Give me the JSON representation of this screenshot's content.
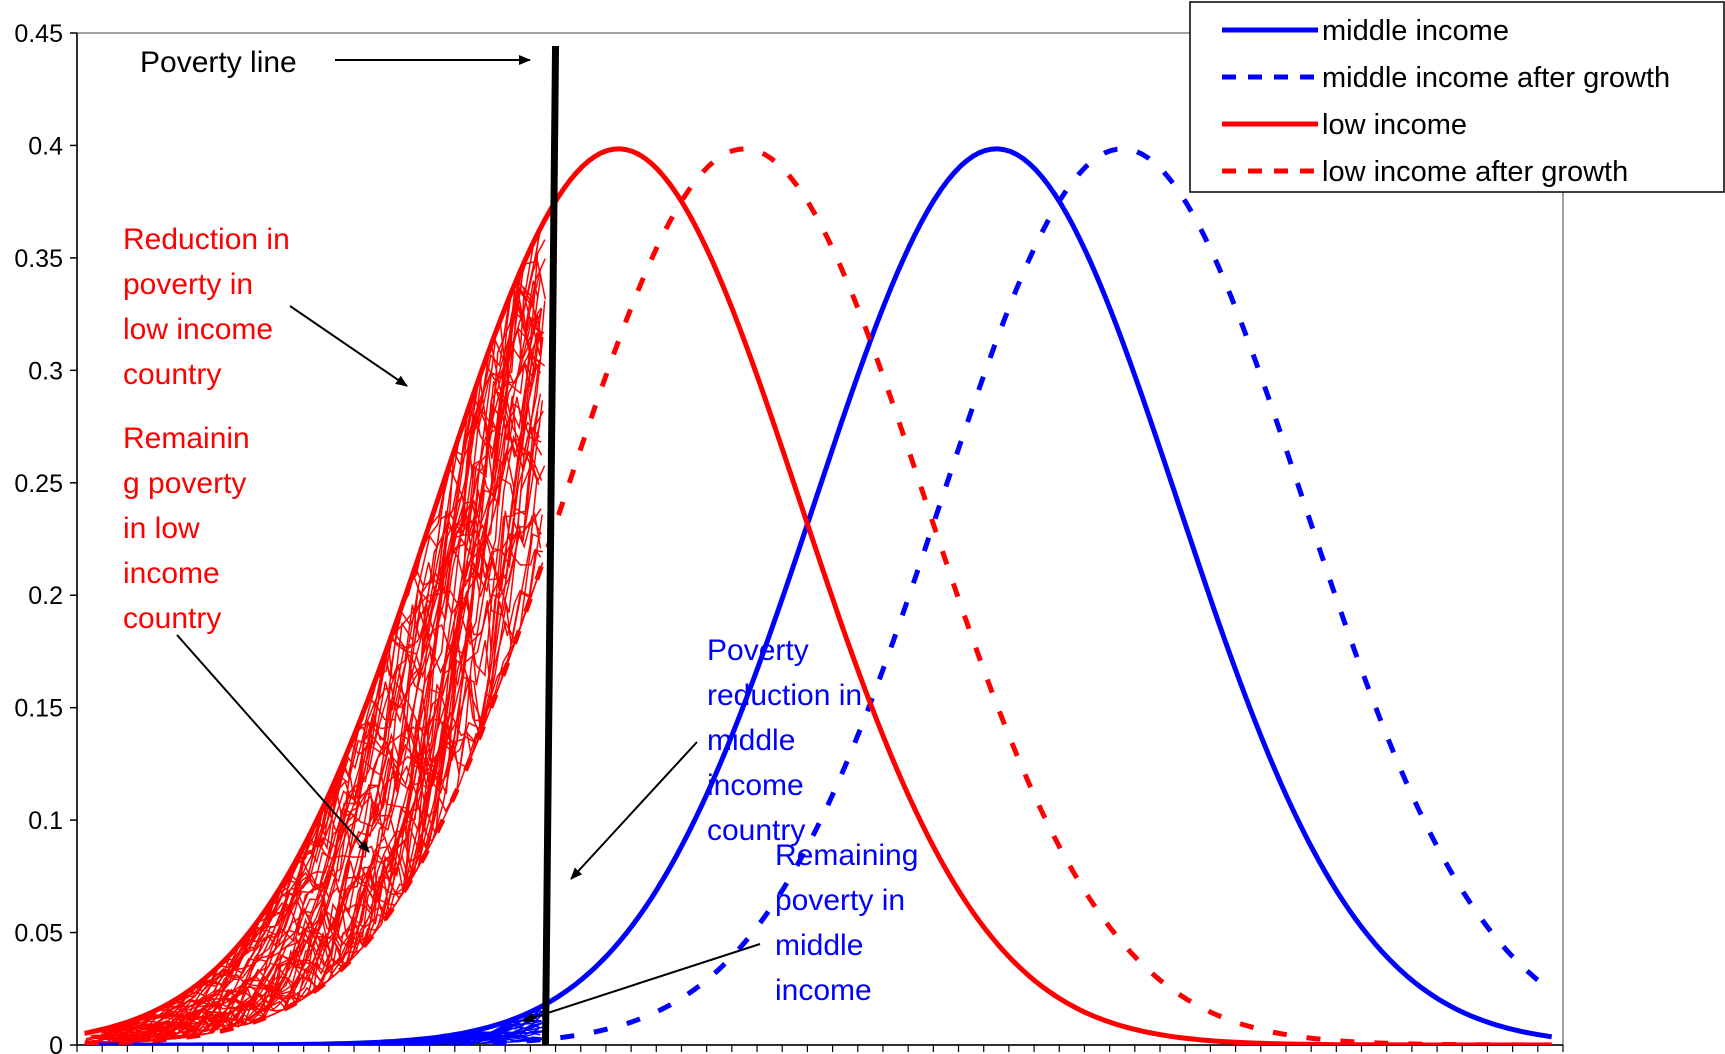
{
  "chart_data": {
    "type": "line",
    "title": "",
    "xlabel": "",
    "ylabel": "",
    "ylim": [
      0,
      0.45
    ],
    "xlim": [
      0,
      59
    ],
    "y_ticks": [
      "0",
      "0.05",
      "0.1",
      "0.15",
      "0.2",
      "0.25",
      "0.3",
      "0.35",
      "0.4",
      "0.45"
    ],
    "x_tick_count": 59,
    "grid": false,
    "legend_position": "top-right",
    "colors": {
      "middle": "#0000ff",
      "low": "#ff0000",
      "poverty_line": "#000000"
    },
    "series": [
      {
        "name": "middle income",
        "color": "#0000ff",
        "dash": "solid",
        "mean": 36.5,
        "sd": 7.2,
        "peak": 0.3985
      },
      {
        "name": "middle income after growth",
        "color": "#0000ff",
        "dash": "dashed",
        "mean": 41.5,
        "sd": 7.2,
        "peak": 0.3985
      },
      {
        "name": "low income",
        "color": "#ff0000",
        "dash": "solid",
        "mean": 21.5,
        "sd": 7.2,
        "peak": 0.3985
      },
      {
        "name": "low income after growth",
        "color": "#ff0000",
        "dash": "dashed",
        "mean": 26.5,
        "sd": 7.2,
        "peak": 0.3985
      }
    ],
    "poverty_line": {
      "label": "Poverty line",
      "x": 18.6,
      "x_top": 19.0
    },
    "annotations": [
      {
        "id": "reduction-low",
        "color": "#ff0000",
        "lines": [
          "Reduction in",
          "poverty in",
          "low income",
          "country"
        ]
      },
      {
        "id": "remaining-low",
        "color": "#ff0000",
        "lines": [
          "Remainin",
          "g poverty",
          "in low",
          "income",
          "country"
        ]
      },
      {
        "id": "reduction-middle",
        "color": "#0000ff",
        "lines": [
          "Poverty",
          "reduction in",
          "middle",
          "income",
          "country"
        ]
      },
      {
        "id": "remaining-middle",
        "color": "#0000ff",
        "lines": [
          "Remaining",
          "poverty in",
          "middle",
          "income"
        ]
      }
    ]
  }
}
